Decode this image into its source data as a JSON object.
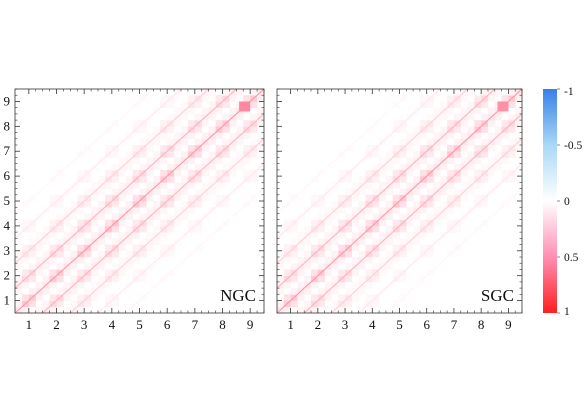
{
  "chart_data": [
    {
      "type": "heatmap",
      "panel_label": "NGC",
      "tick_labels": [
        "1",
        "2",
        "3",
        "4",
        "5",
        "6",
        "7",
        "8",
        "9"
      ],
      "xlim": [
        0.5,
        9.5
      ],
      "ylim": [
        0.5,
        9.5
      ],
      "diagonal_bands": [
        {
          "offset": 0,
          "value": 0.55
        },
        {
          "offset": 1,
          "value": 0.4
        },
        {
          "offset": -1,
          "value": 0.4
        },
        {
          "offset": 2,
          "value": 0.25
        },
        {
          "offset": -2,
          "value": 0.25
        },
        {
          "offset": 3,
          "value": 0.12
        },
        {
          "offset": -3,
          "value": 0.12
        },
        {
          "offset": 4,
          "value": 0.05
        },
        {
          "offset": -4,
          "value": 0.05
        }
      ],
      "peak": {
        "x": 8.8,
        "y": 8.8,
        "value": 0.6
      }
    },
    {
      "type": "heatmap",
      "panel_label": "SGC",
      "tick_labels": [
        "1",
        "2",
        "3",
        "4",
        "5",
        "6",
        "7",
        "8",
        "9"
      ],
      "xlim": [
        0.5,
        9.5
      ],
      "ylim": [
        0.5,
        9.5
      ],
      "diagonal_bands": [
        {
          "offset": 0,
          "value": 0.55
        },
        {
          "offset": 1,
          "value": 0.4
        },
        {
          "offset": -1,
          "value": 0.4
        },
        {
          "offset": 2,
          "value": 0.25
        },
        {
          "offset": -2,
          "value": 0.25
        },
        {
          "offset": 3,
          "value": 0.12
        },
        {
          "offset": -3,
          "value": 0.12
        },
        {
          "offset": 4,
          "value": 0.05
        },
        {
          "offset": -4,
          "value": 0.05
        }
      ],
      "peak": {
        "x": 8.8,
        "y": 8.8,
        "value": 0.55
      }
    }
  ],
  "colorbar": {
    "range": [
      -1,
      1
    ],
    "tick_values": [
      -1,
      -0.5,
      0,
      0.5,
      1
    ],
    "tick_labels": [
      "-1",
      "-0.5",
      "0",
      "0.5",
      "1"
    ],
    "colors": {
      "negative": "#3a7fe8",
      "zero": "#ffffff",
      "positive": "#ff1f1f"
    }
  }
}
